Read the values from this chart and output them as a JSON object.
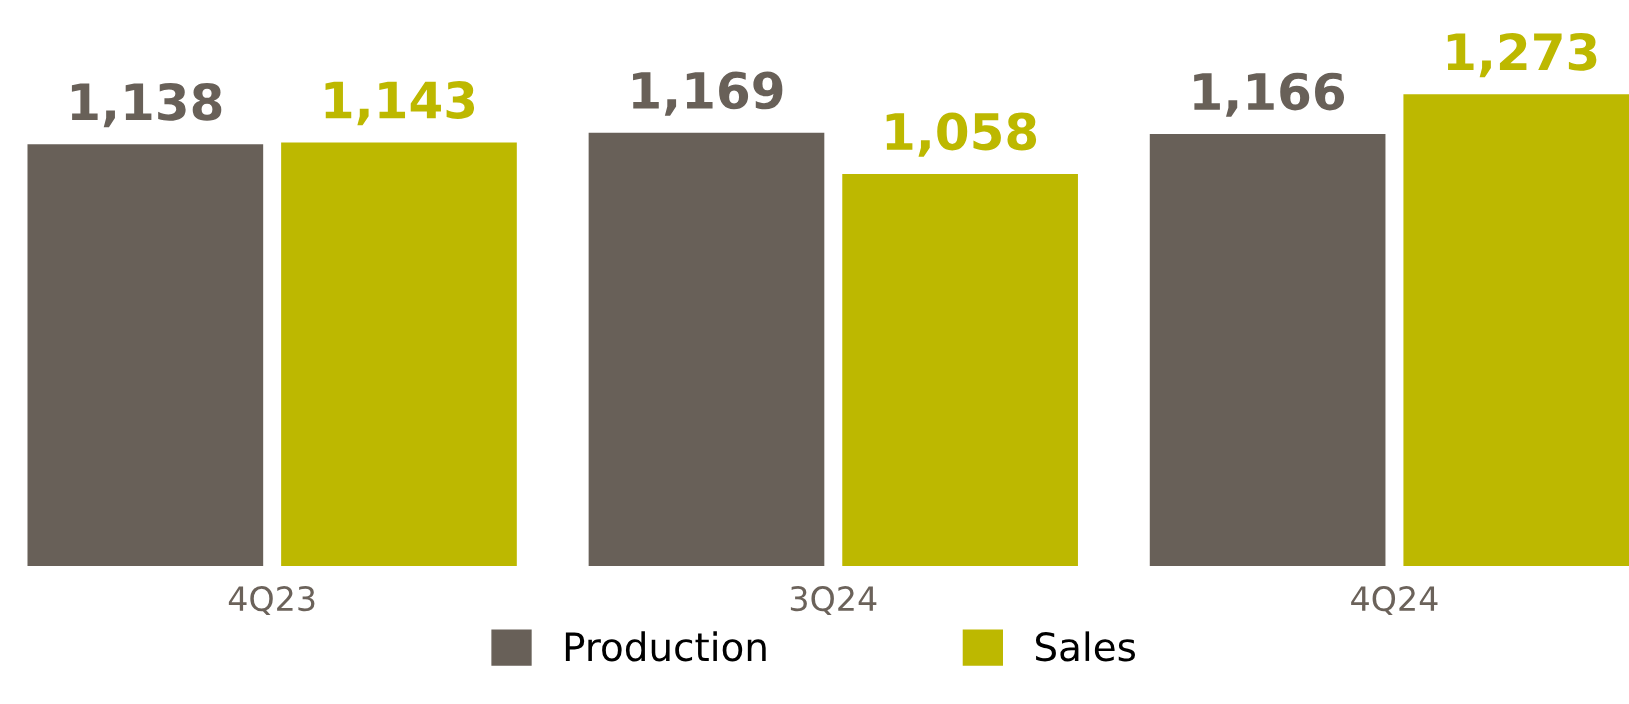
{
  "chart_data": {
    "type": "bar",
    "categories": [
      "4Q23",
      "3Q24",
      "4Q24"
    ],
    "series": [
      {
        "name": "Production",
        "color": "#686058",
        "values": [
          1138,
          1169,
          1166
        ],
        "value_labels": [
          "1,138",
          "1,169",
          "1,166"
        ]
      },
      {
        "name": "Sales",
        "color": "#bdb800",
        "values": [
          1143,
          1058,
          1273
        ],
        "value_labels": [
          "1,143",
          "1,058",
          "1,273"
        ]
      }
    ],
    "legend": "bottom",
    "grid": false
  }
}
